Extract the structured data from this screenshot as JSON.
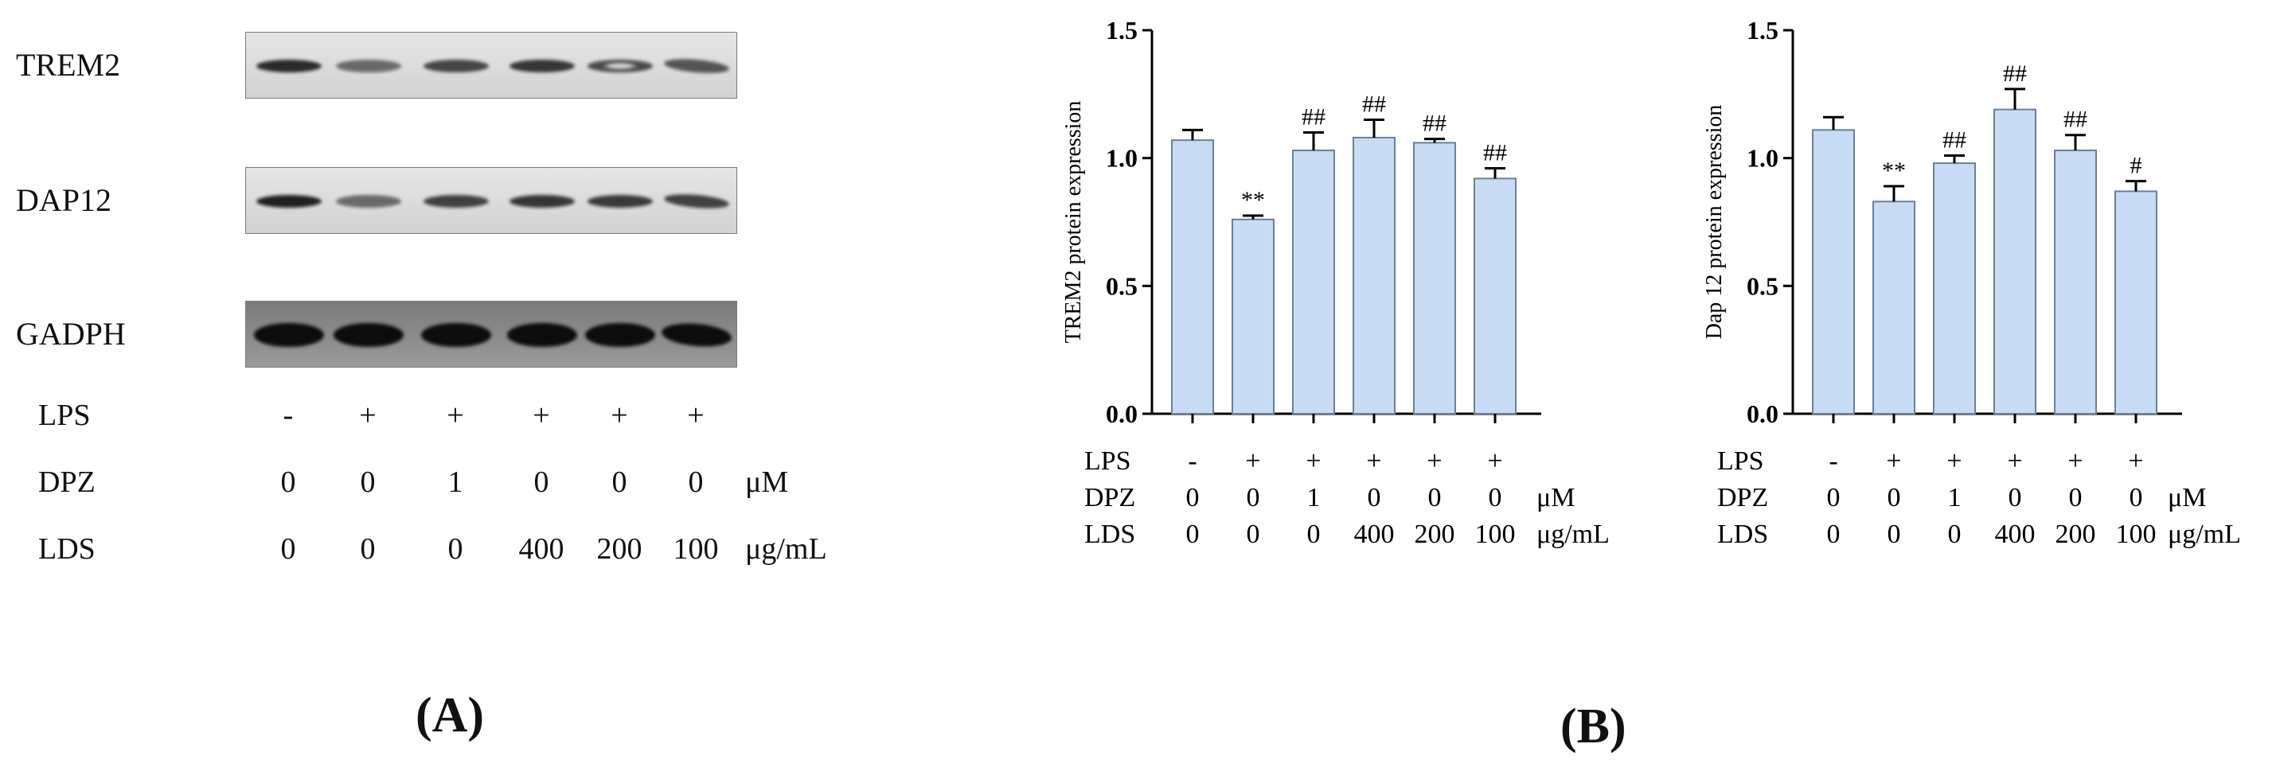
{
  "panel_a": {
    "label": "(A)",
    "blots": [
      {
        "name": "TREM2",
        "bands": [
          {
            "intensity": 0.85,
            "shape": "normal"
          },
          {
            "intensity": 0.55,
            "shape": "normal"
          },
          {
            "intensity": 0.72,
            "shape": "normal"
          },
          {
            "intensity": 0.8,
            "shape": "normal"
          },
          {
            "intensity": 0.7,
            "shape": "ring"
          },
          {
            "intensity": 0.65,
            "shape": "tilt"
          }
        ]
      },
      {
        "name": "DAP12",
        "bands": [
          {
            "intensity": 0.9,
            "shape": "normal"
          },
          {
            "intensity": 0.55,
            "shape": "normal"
          },
          {
            "intensity": 0.75,
            "shape": "normal"
          },
          {
            "intensity": 0.8,
            "shape": "normal"
          },
          {
            "intensity": 0.78,
            "shape": "normal"
          },
          {
            "intensity": 0.75,
            "shape": "tilt"
          }
        ]
      },
      {
        "name": "GADPH",
        "bands": [
          {
            "intensity": 1.0,
            "shape": "thick"
          },
          {
            "intensity": 1.0,
            "shape": "thick"
          },
          {
            "intensity": 1.0,
            "shape": "thick"
          },
          {
            "intensity": 1.0,
            "shape": "thick"
          },
          {
            "intensity": 1.0,
            "shape": "thick"
          },
          {
            "intensity": 1.0,
            "shape": "thicktilt"
          }
        ]
      }
    ],
    "conditions": [
      {
        "label": "LPS",
        "values": [
          "-",
          "+",
          "+",
          "+",
          "+",
          "+"
        ],
        "unit": ""
      },
      {
        "label": "DPZ",
        "values": [
          "0",
          "0",
          "1",
          "0",
          "0",
          "0"
        ],
        "unit": "μM"
      },
      {
        "label": "LDS",
        "values": [
          "0",
          "0",
          "0",
          "400",
          "200",
          "100"
        ],
        "unit": "μg/mL"
      }
    ],
    "colors": {
      "band": "#0c0c0c",
      "strip_bg": "#dedede",
      "gadph_bg": "#8a8a8a"
    }
  },
  "panel_b_label": "(B)",
  "chart_data": [
    {
      "type": "bar",
      "ylabel": "TREM2 protein expression",
      "ylim": [
        0,
        1.5
      ],
      "yticks": [
        "0.0",
        "0.5",
        "1.0",
        "1.5"
      ],
      "values": [
        1.07,
        0.76,
        1.03,
        1.08,
        1.06,
        0.92
      ],
      "errors": [
        0.04,
        0.015,
        0.07,
        0.07,
        0.015,
        0.04
      ],
      "annotations": [
        "",
        "**",
        "##",
        "##",
        "##",
        "##"
      ],
      "conditions": [
        {
          "label": "LPS",
          "values": [
            "-",
            "+",
            "+",
            "+",
            "+",
            "+"
          ],
          "unit": ""
        },
        {
          "label": "DPZ",
          "values": [
            "0",
            "0",
            "1",
            "0",
            "0",
            "0"
          ],
          "unit": "μM"
        },
        {
          "label": "LDS",
          "values": [
            "0",
            "0",
            "0",
            "400",
            "200",
            "100"
          ],
          "unit": "μg/mL"
        }
      ],
      "bar_fill": "#c8dcf5",
      "bar_stroke": "#6c7f97",
      "grid": false
    },
    {
      "type": "bar",
      "ylabel": "Dap 12 protein expression",
      "ylim": [
        0,
        1.5
      ],
      "yticks": [
        "0.0",
        "0.5",
        "1.0",
        "1.5"
      ],
      "values": [
        1.11,
        0.83,
        0.98,
        1.19,
        1.03,
        0.87
      ],
      "errors": [
        0.05,
        0.06,
        0.03,
        0.08,
        0.06,
        0.04
      ],
      "annotations": [
        "",
        "**",
        "##",
        "##",
        "##",
        "#"
      ],
      "conditions": [
        {
          "label": "LPS",
          "values": [
            "-",
            "+",
            "+",
            "+",
            "+",
            "+"
          ],
          "unit": ""
        },
        {
          "label": "DPZ",
          "values": [
            "0",
            "0",
            "1",
            "0",
            "0",
            "0"
          ],
          "unit": "μM"
        },
        {
          "label": "LDS",
          "values": [
            "0",
            "0",
            "0",
            "400",
            "200",
            "100"
          ],
          "unit": "μg/mL"
        }
      ],
      "bar_fill": "#c8dcf5",
      "bar_stroke": "#6c7f97",
      "grid": false
    }
  ]
}
